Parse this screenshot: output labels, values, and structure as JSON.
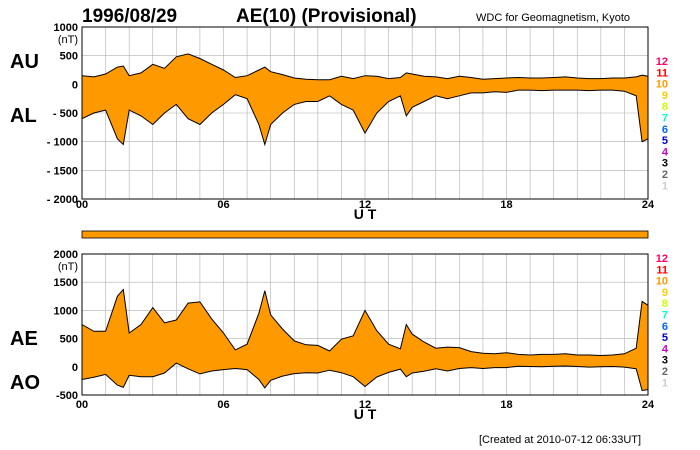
{
  "header": {
    "date": "1996/08/29",
    "title": "AE(10) (Provisional)",
    "source": "WDC for Geomagnetism, Kyoto"
  },
  "footer": {
    "created": "[Created at 2010-07-12 06:33UT]"
  },
  "colors": {
    "fill": "#ff9900",
    "line": "#000000",
    "grid": "#b0b0b0"
  },
  "station_count_legend": [
    {
      "label": "12",
      "color": "#ff0066"
    },
    {
      "label": "11",
      "color": "#ff0000"
    },
    {
      "label": "10",
      "color": "#ff9900"
    },
    {
      "label": "9",
      "color": "#ffcc00"
    },
    {
      "label": "8",
      "color": "#ccff00"
    },
    {
      "label": "7",
      "color": "#00ffcc"
    },
    {
      "label": "6",
      "color": "#0066ff"
    },
    {
      "label": "5",
      "color": "#0000cc"
    },
    {
      "label": "4",
      "color": "#cc00cc"
    },
    {
      "label": "3",
      "color": "#000000"
    },
    {
      "label": "2",
      "color": "#666666"
    },
    {
      "label": "1",
      "color": "#cccccc"
    }
  ],
  "station_bar": {
    "count": 10,
    "color": "#ff9900"
  },
  "chart_data": [
    {
      "type": "area",
      "name": "AU/AL",
      "xlabel": "U T",
      "ylabel": "(nT)",
      "labels": [
        "AU",
        "AL"
      ],
      "xlim": [
        0,
        24
      ],
      "ylim": [
        -2000,
        1000
      ],
      "x_ticks": [
        0,
        6,
        12,
        18,
        24
      ],
      "x_tick_labels": [
        "00",
        "06",
        "12",
        "18",
        "24"
      ],
      "y_ticks": [
        1000,
        500,
        0,
        -500,
        -1000,
        -1500,
        -2000
      ],
      "y_tick_labels": [
        "1000",
        "500",
        "0",
        "- 500",
        "- 1000",
        "- 1500",
        "- 2000"
      ],
      "grid": true,
      "x": [
        0,
        0.5,
        1,
        1.5,
        1.75,
        2,
        2.5,
        3,
        3.5,
        4,
        4.5,
        5,
        5.5,
        6,
        6.5,
        7,
        7.5,
        7.75,
        8,
        8.5,
        9,
        9.5,
        10,
        10.5,
        11,
        11.5,
        12,
        12.5,
        13,
        13.5,
        13.75,
        14,
        14.5,
        15,
        15.5,
        16,
        16.5,
        17,
        17.5,
        18,
        18.5,
        19,
        19.5,
        20,
        20.5,
        21,
        21.5,
        22,
        22.5,
        23,
        23.5,
        23.75,
        24
      ],
      "series": [
        {
          "name": "AU",
          "values": [
            150,
            130,
            180,
            300,
            320,
            150,
            200,
            350,
            280,
            480,
            530,
            450,
            350,
            250,
            120,
            150,
            250,
            300,
            220,
            170,
            110,
            90,
            80,
            80,
            140,
            100,
            150,
            140,
            100,
            120,
            200,
            180,
            140,
            130,
            100,
            140,
            120,
            90,
            100,
            110,
            120,
            110,
            110,
            120,
            130,
            110,
            100,
            100,
            110,
            110,
            130,
            160,
            140
          ]
        },
        {
          "name": "AL",
          "values": [
            -600,
            -500,
            -450,
            -950,
            -1050,
            -450,
            -550,
            -700,
            -500,
            -350,
            -600,
            -700,
            -500,
            -350,
            -180,
            -250,
            -700,
            -1050,
            -700,
            -500,
            -350,
            -300,
            -300,
            -200,
            -350,
            -450,
            -850,
            -500,
            -300,
            -200,
            -550,
            -400,
            -300,
            -200,
            -250,
            -200,
            -150,
            -150,
            -130,
            -140,
            -100,
            -100,
            -110,
            -100,
            -100,
            -100,
            -110,
            -100,
            -100,
            -120,
            -200,
            -1000,
            -950
          ]
        }
      ]
    },
    {
      "type": "area",
      "name": "AE/AO",
      "xlabel": "U T",
      "ylabel": "(nT)",
      "labels": [
        "AE",
        "AO"
      ],
      "xlim": [
        0,
        24
      ],
      "ylim": [
        -500,
        2000
      ],
      "x_ticks": [
        0,
        6,
        12,
        18,
        24
      ],
      "x_tick_labels": [
        "00",
        "06",
        "12",
        "18",
        "24"
      ],
      "y_ticks": [
        2000,
        1500,
        1000,
        500,
        0,
        -500
      ],
      "y_tick_labels": [
        "2000",
        "1500",
        "1000",
        "500",
        "0",
        "-500"
      ],
      "grid": true,
      "x": [
        0,
        0.5,
        1,
        1.5,
        1.75,
        2,
        2.5,
        3,
        3.5,
        4,
        4.5,
        5,
        5.5,
        6,
        6.5,
        7,
        7.5,
        7.75,
        8,
        8.5,
        9,
        9.5,
        10,
        10.5,
        11,
        11.5,
        12,
        12.5,
        13,
        13.5,
        13.75,
        14,
        14.5,
        15,
        15.5,
        16,
        16.5,
        17,
        17.5,
        18,
        18.5,
        19,
        19.5,
        20,
        20.5,
        21,
        21.5,
        22,
        22.5,
        23,
        23.5,
        23.75,
        24
      ],
      "series": [
        {
          "name": "AE",
          "values": [
            750,
            630,
            630,
            1250,
            1370,
            600,
            750,
            1050,
            780,
            830,
            1130,
            1150,
            850,
            600,
            300,
            400,
            950,
            1350,
            920,
            670,
            460,
            390,
            380,
            280,
            490,
            550,
            1000,
            640,
            400,
            320,
            750,
            580,
            440,
            330,
            350,
            340,
            270,
            240,
            230,
            250,
            220,
            210,
            220,
            220,
            230,
            210,
            210,
            200,
            210,
            230,
            330,
            1160,
            1090
          ]
        },
        {
          "name": "AO",
          "values": [
            -225,
            -185,
            -135,
            -325,
            -365,
            -150,
            -175,
            -175,
            -110,
            65,
            -35,
            -125,
            -75,
            -50,
            -30,
            -50,
            -225,
            -375,
            -240,
            -165,
            -120,
            -105,
            -110,
            -60,
            -105,
            -175,
            -350,
            -180,
            -100,
            -40,
            -175,
            -110,
            -80,
            -35,
            -75,
            -30,
            -15,
            -30,
            -15,
            -15,
            10,
            5,
            0,
            10,
            15,
            5,
            -5,
            0,
            5,
            -5,
            -35,
            -420,
            -405
          ]
        }
      ]
    }
  ]
}
